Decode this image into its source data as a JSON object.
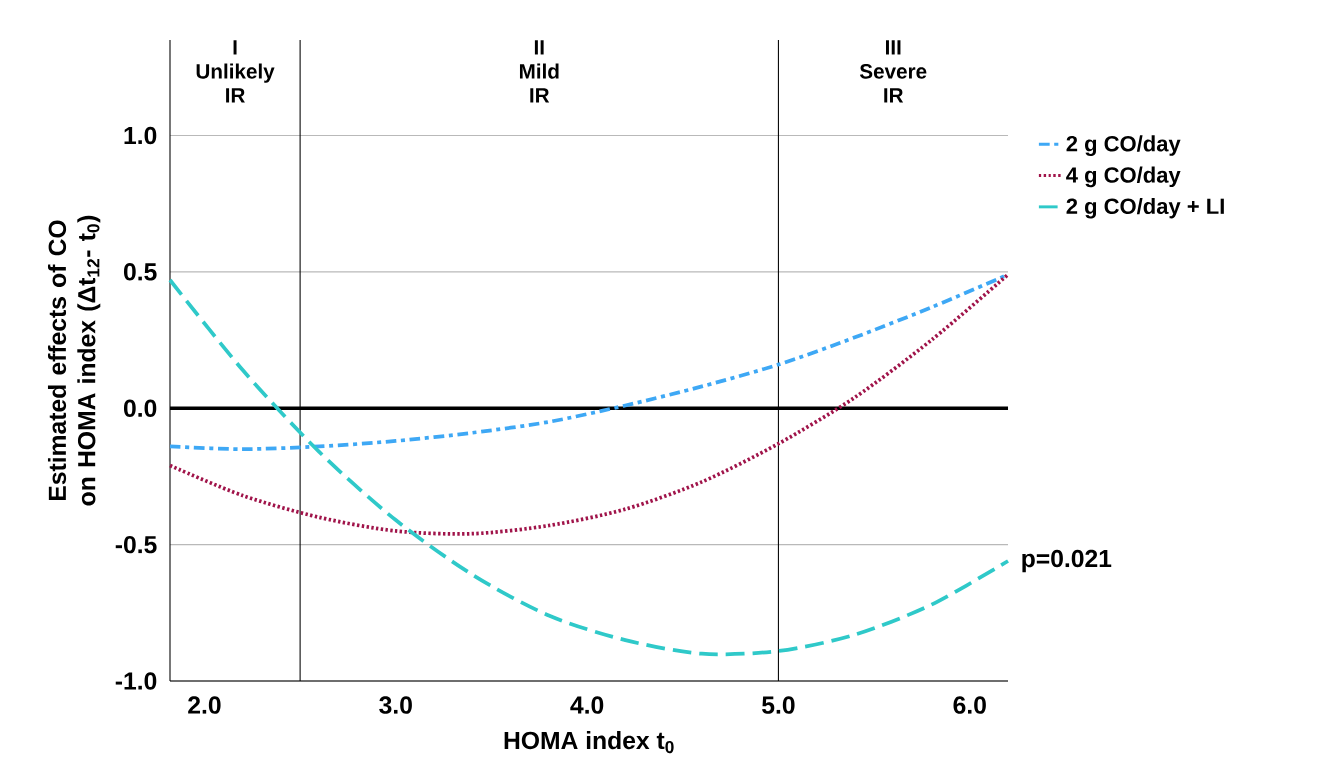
{
  "chart_data": {
    "type": "line",
    "xlabel": "HOMA index t$_{0}$",
    "ylabel": "Estimated effects of CO on HOMA index (Δt$_{12}$- t$_{0}$)",
    "x": [
      1.82,
      2.2,
      2.6,
      3.0,
      3.4,
      3.8,
      4.2,
      4.6,
      5.0,
      5.4,
      5.8,
      6.2
    ],
    "series": [
      {
        "name": "2 g CO/day",
        "color": "#3ea8f5",
        "line_style": "dashdot",
        "values": [
          -0.14,
          -0.15,
          -0.14,
          -0.12,
          -0.09,
          -0.05,
          0.01,
          0.08,
          0.16,
          0.26,
          0.37,
          0.49
        ]
      },
      {
        "name": "4 g CO/day",
        "color": "#a0144a",
        "line_style": "dotted",
        "values": [
          -0.21,
          -0.32,
          -0.4,
          -0.45,
          -0.46,
          -0.43,
          -0.37,
          -0.27,
          -0.13,
          0.04,
          0.25,
          0.49
        ]
      },
      {
        "name": "2 g CO/day + LI",
        "color": "#2fc9c9",
        "line_style": "dashed",
        "values": [
          0.47,
          0.14,
          -0.16,
          -0.41,
          -0.61,
          -0.76,
          -0.85,
          -0.9,
          -0.89,
          -0.83,
          -0.72,
          -0.56
        ]
      }
    ],
    "xlim": [
      1.82,
      6.2
    ],
    "ylim": [
      -1.0,
      1.35
    ],
    "xticks": [
      {
        "value": 2,
        "label": "2.0"
      },
      {
        "value": 3,
        "label": "3.0"
      },
      {
        "value": 4,
        "label": "4.0"
      },
      {
        "value": 5,
        "label": "5.0"
      },
      {
        "value": 6,
        "label": "6.0"
      }
    ],
    "yticks": [
      {
        "value": -1,
        "label": "-1.0"
      },
      {
        "value": -0.5,
        "label": "-0.5"
      },
      {
        "value": 0,
        "label": "0.0"
      },
      {
        "value": 0.5,
        "label": "0.5"
      },
      {
        "value": 1,
        "label": "1.0"
      }
    ],
    "grid": "y",
    "legend": "top right",
    "ref_lines": [
      {
        "axis": "y",
        "value": 0,
        "color": "#000000"
      },
      {
        "axis": "x",
        "value": 2.5,
        "color": "#000000"
      },
      {
        "axis": "x",
        "value": 5.0,
        "color": "#000000"
      }
    ],
    "annotations": [
      "I Unlikely IR",
      "II Mild IR",
      "III Severe IR",
      "p=0.021"
    ]
  }
}
